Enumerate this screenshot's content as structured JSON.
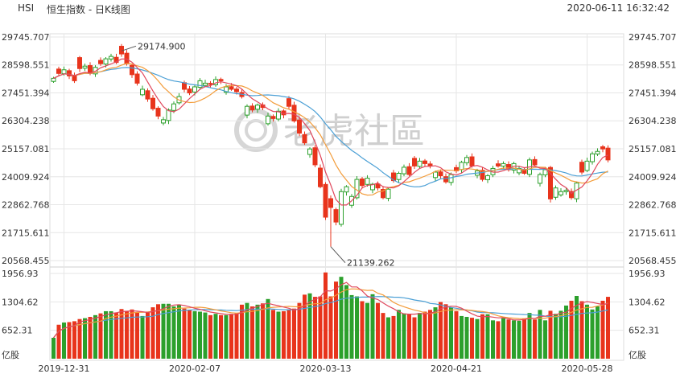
{
  "header": {
    "symbol": "HSI",
    "subtitle": "恒生指数 - 日K线图",
    "datetime": "2020-06-11 16:32:42"
  },
  "watermark": "老虎社區",
  "colors": {
    "up": "#2ca02c",
    "down": "#e8341c",
    "ma5": "#e0475c",
    "ma10": "#f39c3a",
    "ma20": "#4a9fd5",
    "grid": "#e6e6e6"
  },
  "chart_data": {
    "type": "candlestick",
    "price_axis": {
      "range": [
        20568.455,
        29745.707
      ],
      "ticks": [
        "29745.707",
        "28598.551",
        "27451.394",
        "26304.238",
        "25157.081",
        "24009.924",
        "22862.768",
        "21715.611",
        "20568.455"
      ]
    },
    "volume_axis": {
      "range": [
        0,
        1956.93
      ],
      "ticks": [
        "1956.93",
        "1304.62",
        "652.31"
      ],
      "unit": "亿股"
    },
    "x_ticks": [
      {
        "label": "2019-12-31",
        "index": 2
      },
      {
        "label": "2020-02-07",
        "index": 27
      },
      {
        "label": "2020-03-13",
        "index": 52
      },
      {
        "label": "2020-04-21",
        "index": 77
      },
      {
        "label": "2020-05-28",
        "index": 102
      }
    ],
    "annotations": [
      {
        "label": "29174.900",
        "index": 13,
        "value": 29174.9,
        "type": "high"
      },
      {
        "label": "21139.262",
        "index": 53,
        "value": 21139.262,
        "type": "low"
      }
    ],
    "legend": false,
    "grid": true,
    "closes": [
      28050,
      28250,
      28400,
      28150,
      27950,
      28450,
      28550,
      28250,
      28500,
      28650,
      28850,
      28950,
      28700,
      29050,
      28650,
      28200,
      27850,
      27600,
      27200,
      26800,
      26500,
      26350,
      26750,
      27000,
      27300,
      27600,
      27450,
      27700,
      27950,
      27850,
      27800,
      28000,
      27950,
      27700,
      27600,
      27500,
      27300,
      26900,
      26750,
      26950,
      26850,
      26500,
      26400,
      26700,
      26550,
      26900,
      26300,
      25800,
      25400,
      25150,
      24500,
      23600,
      22350,
      22750,
      22150,
      23400,
      23600,
      23200,
      23900,
      23650,
      23950,
      23700,
      23550,
      23150,
      23500,
      23850,
      24150,
      24400,
      24100,
      24450,
      24650,
      24550,
      24450,
      24200,
      24050,
      23800,
      24100,
      24250,
      24600,
      24800,
      24450,
      24250,
      23900,
      24050,
      24350,
      24450,
      24550,
      24300,
      24550,
      24350,
      24150,
      24700,
      24500,
      24100,
      24300,
      23100,
      23550,
      23400,
      23450,
      23150,
      23750,
      24200,
      24650,
      24950,
      25050,
      25150,
      24700
    ],
    "volumes": [
      480,
      780,
      830,
      840,
      860,
      910,
      930,
      960,
      1000,
      1040,
      1090,
      1090,
      1050,
      1140,
      1080,
      1130,
      1060,
      980,
      1060,
      1180,
      1250,
      1260,
      1260,
      1200,
      1230,
      1150,
      1120,
      1090,
      1080,
      1060,
      1000,
      1030,
      1000,
      1000,
      1030,
      1040,
      1240,
      1280,
      1200,
      1240,
      1270,
      1370,
      1120,
      1080,
      1090,
      1130,
      1150,
      1280,
      1470,
      1500,
      1420,
      1430,
      1980,
      1430,
      1770,
      1880,
      1690,
      1460,
      1430,
      1320,
      1280,
      1480,
      1280,
      1050,
      950,
      980,
      1120,
      1040,
      1020,
      950,
      1050,
      1080,
      1120,
      1180,
      1300,
      1250,
      1180,
      1090,
      980,
      960,
      940,
      910,
      1020,
      1020,
      880,
      860,
      930,
      900,
      880,
      870,
      920,
      1050,
      900,
      1120,
      880,
      1100,
      1030,
      1100,
      1220,
      1330,
      1440,
      1320,
      1240,
      1130,
      1200,
      1330,
      1420
    ]
  }
}
